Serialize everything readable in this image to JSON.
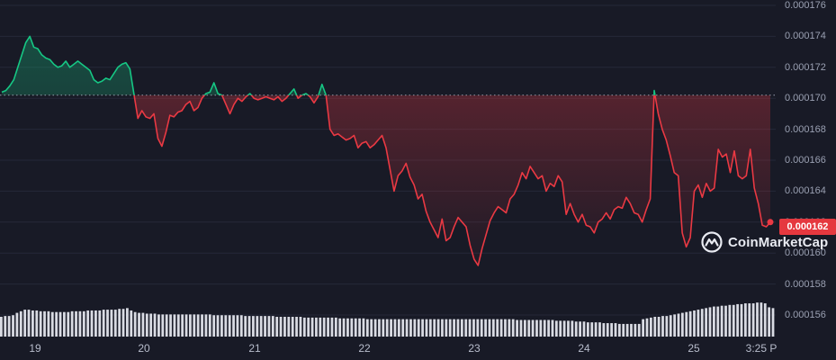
{
  "chart_data": {
    "type": "line",
    "title": "",
    "ylim": [
      0.0001548,
      0.0001764
    ],
    "y_ticks": [
      "0.000176",
      "0.000174",
      "0.000172",
      "0.000170",
      "0.000168",
      "0.000166",
      "0.000164",
      "0.000162",
      "0.000160",
      "0.000158",
      "0.000156"
    ],
    "x_ticks": [
      "19",
      "20",
      "21",
      "22",
      "23",
      "24",
      "25",
      "3:25 P"
    ],
    "reference_price": 0.0001702,
    "current_price": 0.000162,
    "current_price_label": "0.000162",
    "colors": {
      "above": "#16c784",
      "below": "#ea3943",
      "volume": "#d9dbe3",
      "background": "#181a26",
      "grid": "#252838"
    },
    "series": [
      {
        "values": [
          0.0001704,
          0.0001705,
          0.0001708,
          0.0001712,
          0.000172,
          0.0001728,
          0.0001736,
          0.000174,
          0.0001733,
          0.0001732,
          0.0001728,
          0.0001726,
          0.0001725,
          0.0001722,
          0.000172,
          0.0001721,
          0.0001724,
          0.000172,
          0.0001722,
          0.0001724,
          0.0001722,
          0.000172,
          0.0001718,
          0.0001712,
          0.000171,
          0.0001711,
          0.0001713,
          0.0001712,
          0.0001716,
          0.000172,
          0.0001722,
          0.0001723,
          0.0001719,
          0.0001703,
          0.0001687,
          0.0001692,
          0.0001688,
          0.0001687,
          0.000169,
          0.0001674,
          0.0001669,
          0.0001678,
          0.0001689,
          0.0001688,
          0.0001691,
          0.0001692,
          0.0001696,
          0.0001698,
          0.0001692,
          0.0001694,
          0.00017,
          0.0001703,
          0.0001704,
          0.000171,
          0.0001703,
          0.0001702,
          0.0001696,
          0.000169,
          0.0001696,
          0.00017,
          0.0001698,
          0.0001701,
          0.0001703,
          0.00017,
          0.0001699,
          0.00017,
          0.0001701,
          0.00017,
          0.0001699,
          0.0001701,
          0.0001698,
          0.00017,
          0.0001703,
          0.0001706,
          0.00017,
          0.0001702,
          0.0001703,
          0.0001701,
          0.0001697,
          0.0001701,
          0.0001709,
          0.0001702,
          0.000168,
          0.0001676,
          0.0001677,
          0.0001675,
          0.0001673,
          0.0001674,
          0.0001676,
          0.0001668,
          0.0001671,
          0.0001672,
          0.0001668,
          0.000167,
          0.0001673,
          0.0001676,
          0.0001668,
          0.0001654,
          0.000164,
          0.000165,
          0.0001653,
          0.0001658,
          0.0001649,
          0.0001644,
          0.0001635,
          0.0001638,
          0.0001627,
          0.000162,
          0.0001615,
          0.000161,
          0.0001622,
          0.0001608,
          0.000161,
          0.0001617,
          0.0001623,
          0.000162,
          0.0001617,
          0.0001605,
          0.0001596,
          0.0001592,
          0.0001603,
          0.0001612,
          0.0001621,
          0.0001626,
          0.000163,
          0.0001628,
          0.0001626,
          0.0001635,
          0.0001638,
          0.0001644,
          0.0001652,
          0.0001648,
          0.0001656,
          0.0001652,
          0.0001648,
          0.000165,
          0.000164,
          0.0001645,
          0.0001643,
          0.000165,
          0.0001646,
          0.0001625,
          0.0001632,
          0.0001625,
          0.000162,
          0.0001625,
          0.0001618,
          0.0001617,
          0.0001613,
          0.000162,
          0.0001622,
          0.0001626,
          0.0001622,
          0.0001628,
          0.000163,
          0.0001629,
          0.0001636,
          0.0001632,
          0.0001626,
          0.0001625,
          0.000162,
          0.0001628,
          0.0001635,
          0.0001705,
          0.000169,
          0.000168,
          0.0001673,
          0.0001663,
          0.0001652,
          0.000165,
          0.0001613,
          0.0001604,
          0.000161,
          0.000164,
          0.0001644,
          0.0001636,
          0.0001645,
          0.000164,
          0.0001642,
          0.0001667,
          0.0001662,
          0.0001664,
          0.0001652,
          0.0001666,
          0.000165,
          0.0001648,
          0.000165,
          0.0001667,
          0.0001642,
          0.0001632,
          0.0001618,
          0.0001617,
          0.000162
        ]
      }
    ],
    "volume": [
      0.25,
      0.26,
      0.26,
      0.27,
      0.3,
      0.32,
      0.34,
      0.34,
      0.33,
      0.33,
      0.32,
      0.32,
      0.32,
      0.31,
      0.31,
      0.31,
      0.31,
      0.31,
      0.32,
      0.32,
      0.32,
      0.32,
      0.33,
      0.33,
      0.33,
      0.33,
      0.34,
      0.34,
      0.34,
      0.34,
      0.35,
      0.35,
      0.36,
      0.33,
      0.31,
      0.3,
      0.3,
      0.29,
      0.29,
      0.29,
      0.28,
      0.28,
      0.28,
      0.28,
      0.28,
      0.28,
      0.28,
      0.28,
      0.28,
      0.28,
      0.28,
      0.28,
      0.28,
      0.28,
      0.27,
      0.27,
      0.27,
      0.27,
      0.27,
      0.27,
      0.27,
      0.27,
      0.26,
      0.26,
      0.26,
      0.26,
      0.26,
      0.26,
      0.26,
      0.26,
      0.25,
      0.25,
      0.25,
      0.25,
      0.25,
      0.25,
      0.25,
      0.24,
      0.24,
      0.24,
      0.24,
      0.24,
      0.24,
      0.24,
      0.24,
      0.24,
      0.23,
      0.23,
      0.23,
      0.23,
      0.23,
      0.23,
      0.23,
      0.22,
      0.22,
      0.22,
      0.22,
      0.22,
      0.22,
      0.22,
      0.22,
      0.22,
      0.22,
      0.22,
      0.22,
      0.22,
      0.22,
      0.22,
      0.22,
      0.22,
      0.22,
      0.22,
      0.22,
      0.22,
      0.22,
      0.22,
      0.22,
      0.22,
      0.22,
      0.22,
      0.22,
      0.22,
      0.22,
      0.22,
      0.22,
      0.22,
      0.22,
      0.22,
      0.22,
      0.22,
      0.22,
      0.21,
      0.21,
      0.21,
      0.21,
      0.21,
      0.21,
      0.21,
      0.21,
      0.21,
      0.21,
      0.2,
      0.2,
      0.2,
      0.2,
      0.2,
      0.19,
      0.19,
      0.19,
      0.18,
      0.18,
      0.18,
      0.18,
      0.17,
      0.17,
      0.17,
      0.17,
      0.16,
      0.16,
      0.16,
      0.16,
      0.16,
      0.16,
      0.22,
      0.23,
      0.24,
      0.25,
      0.25,
      0.26,
      0.26,
      0.27,
      0.28,
      0.29,
      0.3,
      0.31,
      0.32,
      0.33,
      0.34,
      0.35,
      0.36,
      0.37,
      0.38,
      0.38,
      0.39,
      0.39,
      0.4,
      0.4,
      0.41,
      0.41,
      0.42,
      0.42,
      0.42,
      0.43,
      0.43,
      0.42,
      0.37,
      0.36
    ]
  },
  "watermark": {
    "text": "CoinMarketCap",
    "icon": "coinmarketcap-logo-icon"
  }
}
